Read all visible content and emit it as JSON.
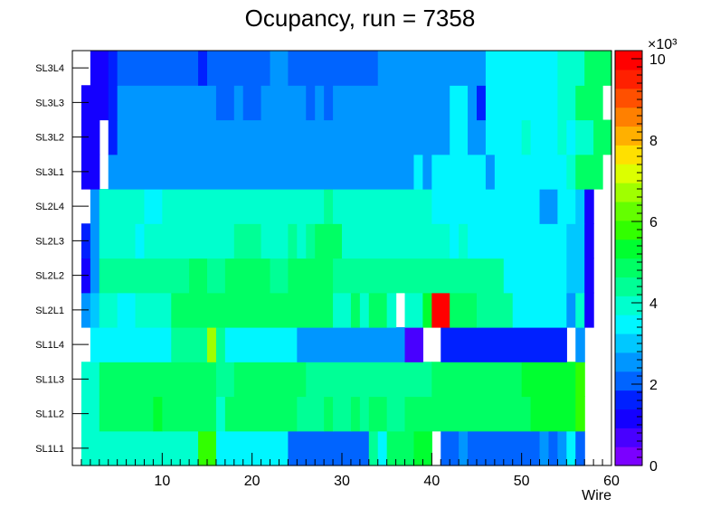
{
  "chart_data": {
    "type": "heatmap",
    "title": "Ocupancy, run = 7358",
    "xlabel": "Wire",
    "ylabel": "",
    "x_range": [
      0,
      60
    ],
    "x_ticks": [
      "10",
      "20",
      "30",
      "40",
      "50",
      "60"
    ],
    "layers": [
      "SL1L1",
      "SL1L2",
      "SL1L3",
      "SL1L4",
      "SL2L1",
      "SL2L2",
      "SL2L3",
      "SL2L4",
      "SL3L1",
      "SL3L2",
      "SL3L3",
      "SL3L4"
    ],
    "z_range": [
      0,
      10200
    ],
    "z_ticks": [
      "0",
      "2",
      "4",
      "6",
      "8",
      "10"
    ],
    "z_multiplier": "×10³",
    "palette": [
      "#7b00ff",
      "#4800ff",
      "#1400ff",
      "#0020ff",
      "#0064ff",
      "#0096ff",
      "#00c8ff",
      "#00f6ff",
      "#00ffce",
      "#00ff96",
      "#00ff64",
      "#00ff30",
      "#32ff00",
      "#64ff00",
      "#a0ff00",
      "#dcff00",
      "#ffe000",
      "#ffb000",
      "#ff8000",
      "#ff5000",
      "#ff2000",
      "#ff0000"
    ],
    "rows": [
      {
        "layer": "SL1L1",
        "segments": [
          [
            1,
            14,
            3900
          ],
          [
            14,
            16,
            5800
          ],
          [
            16,
            24,
            3300
          ],
          [
            24,
            33,
            2300
          ],
          [
            33,
            34,
            4300
          ],
          [
            34,
            35,
            3700
          ],
          [
            35,
            38,
            4800
          ],
          [
            38,
            40,
            5200
          ],
          [
            40,
            41,
            0
          ],
          [
            41,
            43,
            1900
          ],
          [
            43,
            44,
            2700
          ],
          [
            44,
            52,
            1900
          ],
          [
            52,
            53,
            2700
          ],
          [
            53,
            54,
            1900
          ],
          [
            54,
            55,
            2700
          ],
          [
            55,
            56,
            3500
          ],
          [
            56,
            57,
            2300
          ],
          [
            57,
            60,
            0
          ]
        ]
      },
      {
        "layer": "SL1L2",
        "segments": [
          [
            1,
            3,
            4000
          ],
          [
            3,
            9,
            5000
          ],
          [
            9,
            10,
            5500
          ],
          [
            10,
            16,
            5000
          ],
          [
            16,
            17,
            4000
          ],
          [
            17,
            25,
            5000
          ],
          [
            25,
            28,
            4200
          ],
          [
            28,
            29,
            4900
          ],
          [
            29,
            31,
            4200
          ],
          [
            31,
            32,
            4800
          ],
          [
            32,
            33,
            4200
          ],
          [
            33,
            35,
            4800
          ],
          [
            35,
            37,
            4200
          ],
          [
            37,
            51,
            5000
          ],
          [
            51,
            56,
            5300
          ],
          [
            56,
            57,
            6000
          ],
          [
            57,
            60,
            0
          ]
        ]
      },
      {
        "layer": "SL1L3",
        "segments": [
          [
            1,
            3,
            4000
          ],
          [
            3,
            16,
            4900
          ],
          [
            16,
            18,
            4300
          ],
          [
            18,
            26,
            5000
          ],
          [
            26,
            40,
            4200
          ],
          [
            40,
            50,
            5000
          ],
          [
            50,
            54,
            5100
          ],
          [
            54,
            56,
            5300
          ],
          [
            56,
            57,
            6000
          ],
          [
            57,
            60,
            0
          ]
        ]
      },
      {
        "layer": "SL1L4",
        "segments": [
          [
            1,
            2,
            0
          ],
          [
            2,
            11,
            3300
          ],
          [
            11,
            15,
            4300
          ],
          [
            15,
            16,
            6500
          ],
          [
            16,
            17,
            4300
          ],
          [
            17,
            25,
            3300
          ],
          [
            25,
            37,
            2700
          ],
          [
            37,
            39,
            500
          ],
          [
            39,
            41,
            0
          ],
          [
            41,
            55,
            1700
          ],
          [
            55,
            56,
            0
          ],
          [
            56,
            57,
            2700
          ],
          [
            57,
            60,
            0
          ]
        ]
      },
      {
        "layer": "SL2L1",
        "segments": [
          [
            1,
            2,
            2400
          ],
          [
            2,
            3,
            3200
          ],
          [
            3,
            5,
            4100
          ],
          [
            5,
            7,
            3400
          ],
          [
            7,
            11,
            4100
          ],
          [
            11,
            29,
            4800
          ],
          [
            29,
            31,
            4100
          ],
          [
            31,
            32,
            4800
          ],
          [
            32,
            33,
            4100
          ],
          [
            33,
            35,
            4800
          ],
          [
            35,
            36,
            4100
          ],
          [
            36,
            37,
            0
          ],
          [
            37,
            39,
            4100
          ],
          [
            39,
            40,
            5400
          ],
          [
            40,
            42,
            9800
          ],
          [
            42,
            45,
            5000
          ],
          [
            45,
            49,
            4200
          ],
          [
            49,
            55,
            3600
          ],
          [
            55,
            56,
            2600
          ],
          [
            56,
            57,
            3800
          ],
          [
            57,
            58,
            1100
          ],
          [
            58,
            60,
            0
          ]
        ]
      },
      {
        "layer": "SL2L2",
        "segments": [
          [
            1,
            2,
            1200
          ],
          [
            2,
            3,
            2600
          ],
          [
            3,
            13,
            4200
          ],
          [
            13,
            15,
            4800
          ],
          [
            15,
            17,
            4200
          ],
          [
            17,
            22,
            4800
          ],
          [
            22,
            24,
            4200
          ],
          [
            24,
            29,
            4800
          ],
          [
            29,
            48,
            4200
          ],
          [
            48,
            55,
            3400
          ],
          [
            55,
            57,
            2800
          ],
          [
            57,
            58,
            1300
          ],
          [
            58,
            60,
            0
          ]
        ]
      },
      {
        "layer": "SL2L3",
        "segments": [
          [
            1,
            2,
            1600
          ],
          [
            2,
            3,
            2600
          ],
          [
            3,
            7,
            3900
          ],
          [
            7,
            8,
            3300
          ],
          [
            8,
            18,
            3900
          ],
          [
            18,
            21,
            4600
          ],
          [
            21,
            24,
            3900
          ],
          [
            24,
            25,
            4600
          ],
          [
            25,
            26,
            3900
          ],
          [
            26,
            27,
            4600
          ],
          [
            27,
            30,
            4800
          ],
          [
            30,
            42,
            3800
          ],
          [
            42,
            43,
            3300
          ],
          [
            43,
            44,
            3800
          ],
          [
            44,
            52,
            3300
          ],
          [
            52,
            55,
            3600
          ],
          [
            55,
            57,
            2800
          ],
          [
            57,
            58,
            1300
          ],
          [
            58,
            60,
            0
          ]
        ]
      },
      {
        "layer": "SL2L4",
        "segments": [
          [
            1,
            2,
            0
          ],
          [
            2,
            3,
            2600
          ],
          [
            3,
            8,
            3900
          ],
          [
            8,
            10,
            3300
          ],
          [
            10,
            28,
            3900
          ],
          [
            28,
            29,
            4400
          ],
          [
            29,
            40,
            3900
          ],
          [
            40,
            50,
            3300
          ],
          [
            50,
            52,
            3600
          ],
          [
            52,
            54,
            2600
          ],
          [
            54,
            56,
            3600
          ],
          [
            56,
            57,
            2800
          ],
          [
            57,
            58,
            1300
          ],
          [
            58,
            60,
            0
          ]
        ]
      },
      {
        "layer": "SL3L1",
        "segments": [
          [
            1,
            3,
            1200
          ],
          [
            3,
            4,
            0
          ],
          [
            4,
            38,
            2500
          ],
          [
            38,
            39,
            3300
          ],
          [
            39,
            40,
            2500
          ],
          [
            40,
            46,
            3300
          ],
          [
            46,
            47,
            2500
          ],
          [
            47,
            49,
            3300
          ],
          [
            49,
            52,
            3600
          ],
          [
            52,
            54,
            3300
          ],
          [
            54,
            55,
            3600
          ],
          [
            55,
            56,
            3800
          ],
          [
            56,
            59,
            4900
          ],
          [
            59,
            60,
            0
          ]
        ]
      },
      {
        "layer": "SL3L2",
        "segments": [
          [
            1,
            3,
            1200
          ],
          [
            3,
            4,
            0
          ],
          [
            4,
            5,
            1500
          ],
          [
            5,
            42,
            2500
          ],
          [
            42,
            44,
            3300
          ],
          [
            44,
            46,
            2500
          ],
          [
            46,
            50,
            3300
          ],
          [
            50,
            51,
            3800
          ],
          [
            51,
            54,
            3300
          ],
          [
            54,
            55,
            3800
          ],
          [
            55,
            56,
            3300
          ],
          [
            56,
            58,
            3800
          ],
          [
            58,
            60,
            4700
          ]
        ]
      },
      {
        "layer": "SL3L3",
        "segments": [
          [
            1,
            3,
            1200
          ],
          [
            3,
            4,
            1000
          ],
          [
            4,
            5,
            1500
          ],
          [
            5,
            16,
            2500
          ],
          [
            16,
            18,
            2300
          ],
          [
            18,
            19,
            2500
          ],
          [
            19,
            21,
            2300
          ],
          [
            21,
            26,
            2500
          ],
          [
            26,
            27,
            2300
          ],
          [
            27,
            28,
            2500
          ],
          [
            28,
            29,
            2300
          ],
          [
            29,
            42,
            2500
          ],
          [
            42,
            44,
            3300
          ],
          [
            44,
            45,
            2500
          ],
          [
            45,
            46,
            1800
          ],
          [
            46,
            51,
            3300
          ],
          [
            51,
            54,
            3600
          ],
          [
            54,
            56,
            3800
          ],
          [
            56,
            58,
            4700
          ],
          [
            58,
            59,
            4900
          ],
          [
            59,
            60,
            0
          ]
        ]
      },
      {
        "layer": "SL3L4",
        "segments": [
          [
            1,
            2,
            0
          ],
          [
            2,
            3,
            1200
          ],
          [
            3,
            4,
            1000
          ],
          [
            4,
            5,
            1400
          ],
          [
            5,
            14,
            2200
          ],
          [
            14,
            15,
            1800
          ],
          [
            15,
            22,
            2200
          ],
          [
            22,
            24,
            2500
          ],
          [
            24,
            34,
            2200
          ],
          [
            34,
            46,
            2500
          ],
          [
            46,
            53,
            3300
          ],
          [
            53,
            54,
            3600
          ],
          [
            54,
            57,
            3900
          ],
          [
            57,
            59,
            4700
          ],
          [
            59,
            60,
            5000
          ]
        ]
      }
    ]
  }
}
